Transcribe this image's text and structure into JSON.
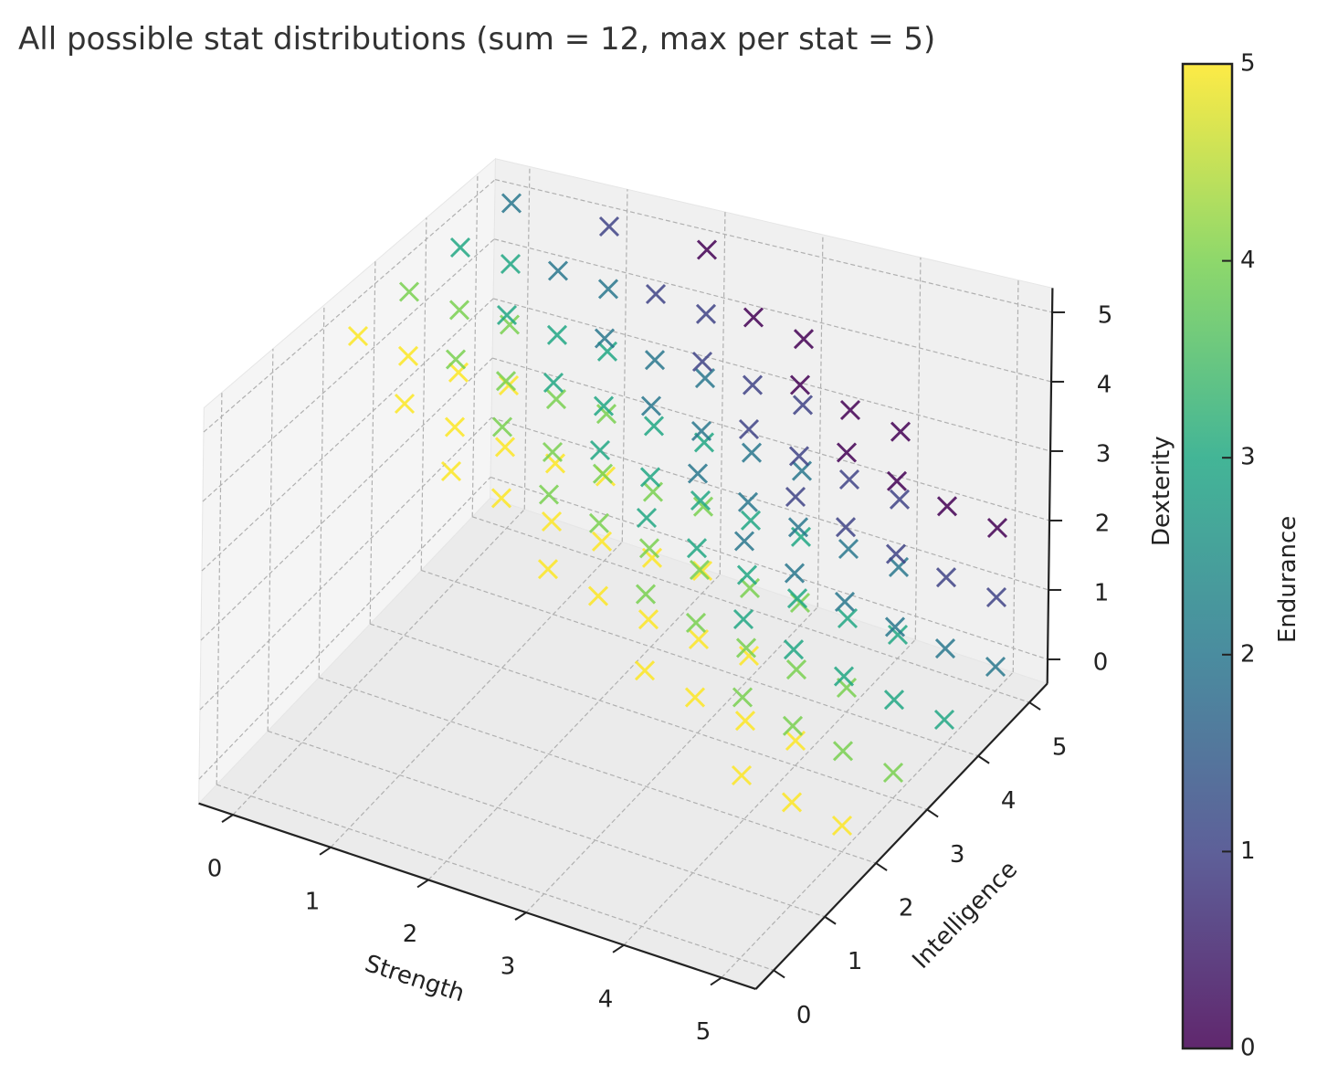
{
  "chart_data": {
    "type": "scatter",
    "projection": "3d",
    "title": "All possible stat distributions (sum = 12, max per stat = 5)",
    "xlabel": "Strength",
    "ylabel": "Intelligence",
    "zlabel": "Dexterity",
    "colorbar_label": "Endurance",
    "xticks": [
      "0",
      "1",
      "2",
      "3",
      "4",
      "5"
    ],
    "yticks": [
      "0",
      "1",
      "2",
      "3",
      "4",
      "5"
    ],
    "zticks": [
      "0",
      "1",
      "2",
      "3",
      "4",
      "5"
    ],
    "colorbar_ticks": [
      "0",
      "1",
      "2",
      "3",
      "4",
      "5"
    ],
    "xlim": [
      0,
      5
    ],
    "ylim": [
      0,
      5
    ],
    "zlim": [
      0,
      5
    ],
    "clim": [
      0,
      5
    ],
    "marker": "x",
    "colormap": "viridis",
    "colormap_stops": [
      "#440154",
      "#414487",
      "#2a788e",
      "#22a884",
      "#7ad151",
      "#fde725"
    ],
    "grid": true,
    "point_fields": [
      "Strength",
      "Intelligence",
      "Dexterity",
      "Endurance"
    ],
    "points": [
      [
        0,
        2,
        5,
        5
      ],
      [
        0,
        3,
        4,
        5
      ],
      [
        0,
        3,
        5,
        4
      ],
      [
        0,
        4,
        3,
        5
      ],
      [
        0,
        4,
        4,
        4
      ],
      [
        0,
        4,
        5,
        3
      ],
      [
        0,
        5,
        2,
        5
      ],
      [
        0,
        5,
        3,
        4
      ],
      [
        0,
        5,
        4,
        3
      ],
      [
        0,
        5,
        5,
        2
      ],
      [
        1,
        1,
        5,
        5
      ],
      [
        1,
        2,
        4,
        5
      ],
      [
        1,
        2,
        5,
        4
      ],
      [
        1,
        3,
        3,
        5
      ],
      [
        1,
        3,
        4,
        4
      ],
      [
        1,
        3,
        5,
        3
      ],
      [
        1,
        4,
        2,
        5
      ],
      [
        1,
        4,
        3,
        4
      ],
      [
        1,
        4,
        4,
        3
      ],
      [
        1,
        4,
        5,
        2
      ],
      [
        1,
        5,
        1,
        5
      ],
      [
        1,
        5,
        2,
        4
      ],
      [
        1,
        5,
        3,
        3
      ],
      [
        1,
        5,
        4,
        2
      ],
      [
        1,
        5,
        5,
        1
      ],
      [
        2,
        0,
        5,
        5
      ],
      [
        2,
        1,
        4,
        5
      ],
      [
        2,
        1,
        5,
        4
      ],
      [
        2,
        2,
        3,
        5
      ],
      [
        2,
        2,
        4,
        4
      ],
      [
        2,
        2,
        5,
        3
      ],
      [
        2,
        3,
        2,
        5
      ],
      [
        2,
        3,
        3,
        4
      ],
      [
        2,
        3,
        4,
        3
      ],
      [
        2,
        3,
        5,
        2
      ],
      [
        2,
        4,
        1,
        5
      ],
      [
        2,
        4,
        2,
        4
      ],
      [
        2,
        4,
        3,
        3
      ],
      [
        2,
        4,
        4,
        2
      ],
      [
        2,
        4,
        5,
        1
      ],
      [
        2,
        5,
        0,
        5
      ],
      [
        2,
        5,
        1,
        4
      ],
      [
        2,
        5,
        2,
        3
      ],
      [
        2,
        5,
        3,
        2
      ],
      [
        2,
        5,
        4,
        1
      ],
      [
        2,
        5,
        5,
        0
      ],
      [
        3,
        0,
        4,
        5
      ],
      [
        3,
        0,
        5,
        4
      ],
      [
        3,
        1,
        3,
        5
      ],
      [
        3,
        1,
        4,
        4
      ],
      [
        3,
        1,
        5,
        3
      ],
      [
        3,
        2,
        2,
        5
      ],
      [
        3,
        2,
        3,
        4
      ],
      [
        3,
        2,
        4,
        3
      ],
      [
        3,
        2,
        5,
        2
      ],
      [
        3,
        3,
        1,
        5
      ],
      [
        3,
        3,
        2,
        4
      ],
      [
        3,
        3,
        3,
        3
      ],
      [
        3,
        3,
        4,
        2
      ],
      [
        3,
        3,
        5,
        1
      ],
      [
        3,
        4,
        0,
        5
      ],
      [
        3,
        4,
        1,
        4
      ],
      [
        3,
        4,
        2,
        3
      ],
      [
        3,
        4,
        3,
        2
      ],
      [
        3,
        4,
        4,
        1
      ],
      [
        3,
        4,
        5,
        0
      ],
      [
        3,
        5,
        0,
        4
      ],
      [
        3,
        5,
        1,
        3
      ],
      [
        3,
        5,
        2,
        2
      ],
      [
        3,
        5,
        3,
        1
      ],
      [
        3,
        5,
        4,
        0
      ],
      [
        4,
        0,
        3,
        5
      ],
      [
        4,
        0,
        4,
        4
      ],
      [
        4,
        0,
        5,
        3
      ],
      [
        4,
        1,
        2,
        5
      ],
      [
        4,
        1,
        3,
        4
      ],
      [
        4,
        1,
        4,
        3
      ],
      [
        4,
        1,
        5,
        2
      ],
      [
        4,
        2,
        1,
        5
      ],
      [
        4,
        2,
        2,
        4
      ],
      [
        4,
        2,
        3,
        3
      ],
      [
        4,
        2,
        4,
        2
      ],
      [
        4,
        2,
        5,
        1
      ],
      [
        4,
        3,
        0,
        5
      ],
      [
        4,
        3,
        1,
        4
      ],
      [
        4,
        3,
        2,
        3
      ],
      [
        4,
        3,
        3,
        2
      ],
      [
        4,
        3,
        4,
        1
      ],
      [
        4,
        3,
        5,
        0
      ],
      [
        4,
        4,
        0,
        4
      ],
      [
        4,
        4,
        1,
        3
      ],
      [
        4,
        4,
        2,
        2
      ],
      [
        4,
        4,
        3,
        1
      ],
      [
        4,
        4,
        4,
        0
      ],
      [
        4,
        5,
        0,
        3
      ],
      [
        4,
        5,
        1,
        2
      ],
      [
        4,
        5,
        2,
        1
      ],
      [
        4,
        5,
        3,
        0
      ],
      [
        5,
        0,
        2,
        5
      ],
      [
        5,
        0,
        3,
        4
      ],
      [
        5,
        0,
        4,
        3
      ],
      [
        5,
        0,
        5,
        2
      ],
      [
        5,
        1,
        1,
        5
      ],
      [
        5,
        1,
        2,
        4
      ],
      [
        5,
        1,
        3,
        3
      ],
      [
        5,
        1,
        4,
        2
      ],
      [
        5,
        1,
        5,
        1
      ],
      [
        5,
        2,
        0,
        5
      ],
      [
        5,
        2,
        1,
        4
      ],
      [
        5,
        2,
        2,
        3
      ],
      [
        5,
        2,
        3,
        2
      ],
      [
        5,
        2,
        4,
        1
      ],
      [
        5,
        2,
        5,
        0
      ],
      [
        5,
        3,
        0,
        4
      ],
      [
        5,
        3,
        1,
        3
      ],
      [
        5,
        3,
        2,
        2
      ],
      [
        5,
        3,
        3,
        1
      ],
      [
        5,
        3,
        4,
        0
      ],
      [
        5,
        4,
        0,
        3
      ],
      [
        5,
        4,
        1,
        2
      ],
      [
        5,
        4,
        2,
        1
      ],
      [
        5,
        4,
        3,
        0
      ],
      [
        5,
        5,
        0,
        2
      ],
      [
        5,
        5,
        1,
        1
      ],
      [
        5,
        5,
        2,
        0
      ]
    ]
  }
}
